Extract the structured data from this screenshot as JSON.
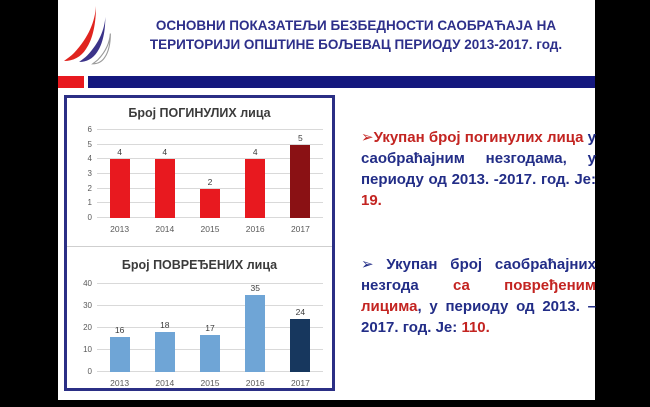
{
  "slide": {
    "title_lines": [
      "ОСНОВНИ ПОКАЗАТЕЉИ БЕЗБЕДНОСТИ САОБРАЋАЈА НА",
      "ТЕРИТОРИЈИ ОПШТИНЕ БОЉЕВАЦ ПЕРИОДУ 2013-2017. год."
    ],
    "logo_name": "road-safety-agency-logo"
  },
  "colors": {
    "header_red": "#e8191f",
    "header_navy": "#14187e",
    "title_navy": "#2d2f8a",
    "box_border": "#2b2f85",
    "text_red": "#c32421",
    "text_navy": "#222d87",
    "bar_red": "#e8191f",
    "bar_dark_red": "#8a1114",
    "bar_blue": "#6fa5d6",
    "bar_navy": "#17375e"
  },
  "chart_data": [
    {
      "type": "bar",
      "title": "Број ПОГИНУЛИХ лица",
      "categories": [
        "2013",
        "2014",
        "2015",
        "2016",
        "2017"
      ],
      "values": [
        4,
        4,
        2,
        4,
        5
      ],
      "bar_colors": [
        "#e8191f",
        "#e8191f",
        "#e8191f",
        "#e8191f",
        "#8a1114"
      ],
      "xlabel": "",
      "ylabel": "",
      "ylim": [
        0,
        6
      ],
      "yticks": [
        0,
        1,
        2,
        3,
        4,
        5,
        6
      ],
      "grid": true,
      "legend": false,
      "data_labels": true
    },
    {
      "type": "bar",
      "title": "Број ПОВРЕЂЕНИХ лица",
      "categories": [
        "2013",
        "2014",
        "2015",
        "2016",
        "2017"
      ],
      "values": [
        16,
        18,
        17,
        35,
        24
      ],
      "bar_colors": [
        "#6fa5d6",
        "#6fa5d6",
        "#6fa5d6",
        "#6fa5d6",
        "#17375e"
      ],
      "xlabel": "",
      "ylabel": "",
      "ylim": [
        0,
        40
      ],
      "yticks": [
        0,
        10,
        20,
        30,
        40
      ],
      "grid": true,
      "legend": false,
      "data_labels": true
    }
  ],
  "bullets": [
    {
      "segments": [
        {
          "text": "➢Укупан број погинулих лица",
          "color": "red"
        },
        {
          "text": " у саобраћајним незгодама, у периоду од 2013. -2017. год. Је: ",
          "color": "navy"
        },
        {
          "text": "19.",
          "color": "red"
        }
      ]
    },
    {
      "segments": [
        {
          "text": "➢ Укупан број саобраћајних незгода ",
          "color": "navy"
        },
        {
          "text": "са повређеним лицима",
          "color": "red"
        },
        {
          "text": ", у периоду од 2013. – 2017. год. Је: ",
          "color": "navy"
        },
        {
          "text": "110.",
          "color": "red"
        }
      ]
    }
  ]
}
